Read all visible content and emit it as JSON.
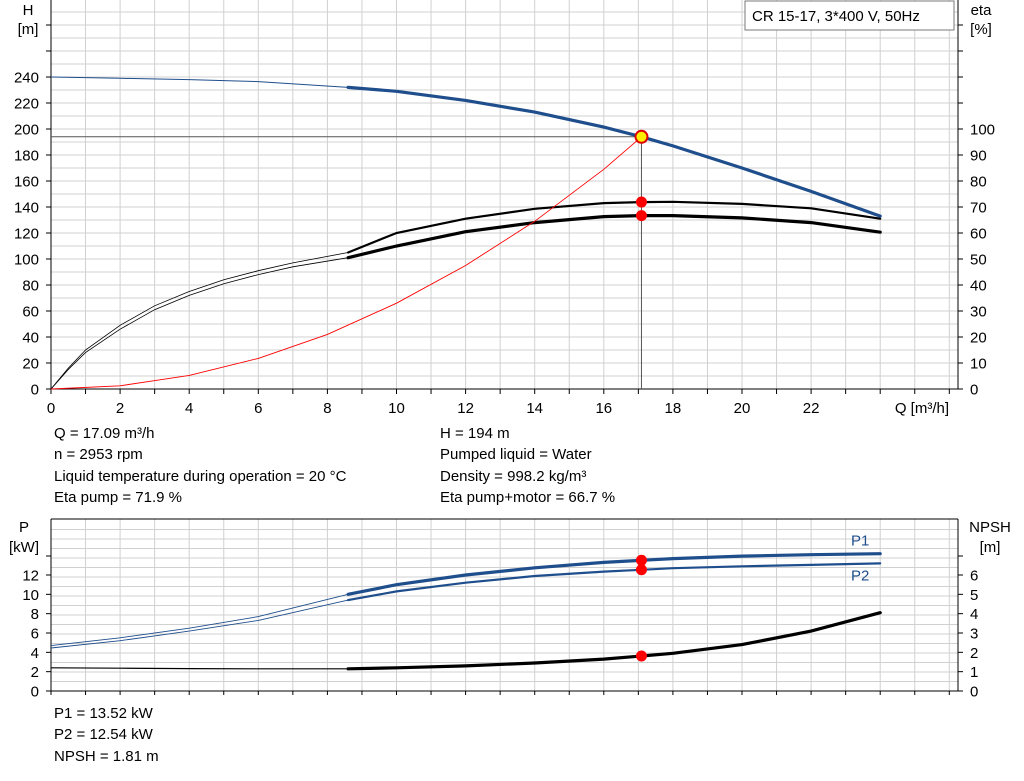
{
  "chart_data": [
    {
      "type": "line",
      "title": "CR 15-17, 3*400 V, 50Hz",
      "xlabel": "Q [m³/h]",
      "ylabel_left": [
        "H",
        "[m]"
      ],
      "ylabel_right": [
        "eta",
        "[%]"
      ],
      "xlim": [
        0,
        26
      ],
      "x_ticks": [
        "0",
        "2",
        "4",
        "6",
        "8",
        "10",
        "12",
        "14",
        "16",
        "18",
        "20",
        "22"
      ],
      "ylim_left": [
        0,
        240
      ],
      "y_ticks_left": [
        "0",
        "20",
        "40",
        "60",
        "80",
        "100",
        "120",
        "140",
        "160",
        "180",
        "200",
        "220",
        "240"
      ],
      "ylim_right": [
        0,
        100
      ],
      "y_ticks_right": [
        "0",
        "10",
        "20",
        "30",
        "40",
        "50",
        "60",
        "70",
        "80",
        "90",
        "100"
      ],
      "grid": true,
      "duty_point": {
        "q": 17.09,
        "h": 194
      },
      "series": [
        {
          "key": "h",
          "axis": "left",
          "color": "#1f4e8c",
          "x": [
            0,
            2,
            4,
            6,
            8.6,
            10,
            12,
            14,
            16,
            17.09,
            18,
            20,
            22,
            24
          ],
          "values": [
            240,
            239,
            238,
            236.5,
            232,
            229,
            222,
            213,
            201.5,
            194,
            187,
            170,
            152,
            133
          ]
        },
        {
          "key": "eta1",
          "axis": "right",
          "color": "#000000",
          "x": [
            0,
            0.5,
            1,
            2,
            3,
            4,
            5,
            6,
            7,
            8.6,
            10,
            12,
            14,
            16,
            17.09,
            18,
            20,
            22,
            24
          ],
          "values": [
            0,
            8,
            15,
            24.5,
            32,
            37.5,
            42,
            45.5,
            48.5,
            52.5,
            60,
            65.5,
            69.3,
            71.5,
            71.9,
            72,
            71.2,
            69.5,
            65.5
          ]
        },
        {
          "key": "eta2",
          "axis": "right",
          "color": "#000000",
          "x": [
            0,
            0.5,
            1,
            2,
            3,
            4,
            5,
            6,
            7,
            8.6,
            10,
            12,
            14,
            16,
            17.09,
            18,
            20,
            22,
            24
          ],
          "values": [
            0,
            7.5,
            14,
            23,
            30.5,
            36,
            40.5,
            44,
            47,
            50.5,
            55,
            60.5,
            64,
            66.3,
            66.7,
            66.7,
            65.8,
            64,
            60.3
          ]
        },
        {
          "key": "system",
          "axis": "left",
          "color": "#ff0000",
          "x": [
            0,
            2,
            4,
            6,
            8,
            10,
            12,
            14,
            16,
            17.09
          ],
          "values": [
            0,
            2.5,
            10.5,
            23.5,
            42,
            66,
            95,
            129,
            169,
            194
          ]
        }
      ],
      "duty_markers": [
        {
          "axis": "left",
          "value": 194,
          "style": "yellow"
        },
        {
          "axis": "right",
          "value": 71.9,
          "style": "red"
        },
        {
          "axis": "right",
          "value": 66.7,
          "style": "red"
        }
      ]
    },
    {
      "type": "line",
      "xlim": [
        0,
        26
      ],
      "ylabel_left": [
        "P",
        "[kW]"
      ],
      "ylabel_right": [
        "NPSH",
        "[m]"
      ],
      "ylim_left": [
        0,
        14.5
      ],
      "y_ticks_left": [
        "0",
        "2",
        "4",
        "6",
        "8",
        "10",
        "12"
      ],
      "ylim_right": [
        0,
        7.25
      ],
      "y_ticks_right": [
        "0",
        "1",
        "2",
        "3",
        "4",
        "5",
        "6"
      ],
      "grid": true,
      "series": [
        {
          "key": "p1",
          "name": "P1",
          "axis": "left",
          "color": "#1f4e8c",
          "x": [
            0,
            2,
            4,
            6,
            8.6,
            10,
            12,
            14,
            16,
            17.09,
            18,
            20,
            22,
            24
          ],
          "values": [
            4.7,
            5.5,
            6.5,
            7.7,
            10,
            11,
            12,
            12.75,
            13.3,
            13.52,
            13.7,
            13.95,
            14.1,
            14.2
          ]
        },
        {
          "key": "p2",
          "name": "P2",
          "axis": "left",
          "color": "#1f4e8c",
          "x": [
            0,
            2,
            4,
            6,
            8.6,
            10,
            12,
            14,
            16,
            17.09,
            18,
            20,
            22,
            24
          ],
          "values": [
            4.45,
            5.2,
            6.2,
            7.3,
            9.4,
            10.3,
            11.2,
            11.9,
            12.35,
            12.54,
            12.7,
            12.9,
            13.05,
            13.2
          ]
        },
        {
          "key": "npsh",
          "axis": "right",
          "color": "#000000",
          "x": [
            0,
            2,
            4,
            6,
            8.6,
            10,
            12,
            14,
            16,
            17.09,
            18,
            20,
            22,
            24
          ],
          "values": [
            1.2,
            1.18,
            1.16,
            1.15,
            1.15,
            1.2,
            1.3,
            1.45,
            1.65,
            1.81,
            1.95,
            2.4,
            3.1,
            4.05
          ]
        }
      ],
      "duty_markers": [
        {
          "axis": "left",
          "value": 13.52,
          "style": "red"
        },
        {
          "axis": "left",
          "value": 12.54,
          "style": "red"
        },
        {
          "axis": "right",
          "value": 1.81,
          "style": "red"
        }
      ]
    }
  ],
  "info_top": {
    "left": [
      "Q = 17.09 m³/h",
      "n = 2953 rpm",
      "Liquid temperature during operation = 20 °C",
      "Eta pump = 71.9 %"
    ],
    "right": [
      "H = 194 m",
      "Pumped liquid = Water",
      "Density = 998.2 kg/m³",
      "Eta pump+motor = 66.7 %"
    ]
  },
  "info_bottom": [
    "P1 = 13.52 kW",
    "P2 = 12.54 kW",
    "NPSH = 1.81 m"
  ]
}
